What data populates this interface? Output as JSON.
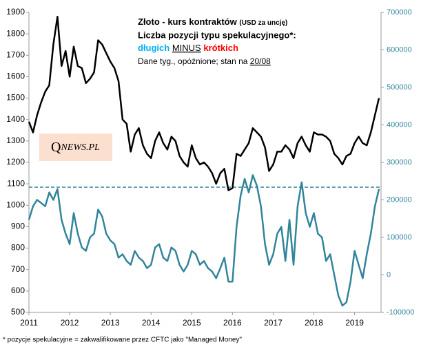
{
  "chart_data": {
    "type": "line",
    "title": "Złoto - kurs kontraktów",
    "title_unit": "(USD za uncję)",
    "subtitle": "Liczba pozycji typu spekulacyjnego*:",
    "legend_long": "długich",
    "legend_minus": "MINUS",
    "legend_short": "krótkich",
    "note": "Dane tyg., opóźnione; stan na",
    "note_date": "20/08",
    "footnote": "* pozycje spekulacyjne = zakwalifikowane przez CFTC jako \"Managed Money\"",
    "logo_q": "Q",
    "logo_rest": "NEWS.PL",
    "x": [
      2011,
      2011.1,
      2011.2,
      2011.3,
      2011.4,
      2011.5,
      2011.6,
      2011.7,
      2011.8,
      2011.9,
      2012,
      2012.1,
      2012.2,
      2012.3,
      2012.4,
      2012.5,
      2012.6,
      2012.7,
      2012.8,
      2012.9,
      2013,
      2013.1,
      2013.2,
      2013.3,
      2013.4,
      2013.5,
      2013.6,
      2013.7,
      2013.8,
      2013.9,
      2014,
      2014.1,
      2014.2,
      2014.3,
      2014.4,
      2014.5,
      2014.6,
      2014.7,
      2014.8,
      2014.9,
      2015,
      2015.1,
      2015.2,
      2015.3,
      2015.4,
      2015.5,
      2015.6,
      2015.7,
      2015.8,
      2015.9,
      2016,
      2016.1,
      2016.2,
      2016.3,
      2016.4,
      2016.5,
      2016.6,
      2016.7,
      2016.8,
      2016.9,
      2017,
      2017.1,
      2017.2,
      2017.3,
      2017.4,
      2017.5,
      2017.6,
      2017.7,
      2017.8,
      2017.9,
      2018,
      2018.1,
      2018.2,
      2018.3,
      2018.4,
      2018.5,
      2018.6,
      2018.7,
      2018.8,
      2018.9,
      2019,
      2019.1,
      2019.2,
      2019.3,
      2019.4,
      2019.5,
      2019.6
    ],
    "series": [
      {
        "color": "#000000",
        "values": [
          1390,
          1340,
          1420,
          1480,
          1530,
          1560,
          1750,
          1880,
          1650,
          1720,
          1600,
          1740,
          1650,
          1640,
          1570,
          1590,
          1620,
          1770,
          1750,
          1710,
          1670,
          1640,
          1580,
          1400,
          1380,
          1250,
          1330,
          1360,
          1280,
          1240,
          1220,
          1300,
          1340,
          1290,
          1260,
          1320,
          1300,
          1230,
          1200,
          1180,
          1280,
          1220,
          1190,
          1200,
          1180,
          1150,
          1100,
          1150,
          1170,
          1070,
          1080,
          1240,
          1230,
          1260,
          1290,
          1360,
          1340,
          1320,
          1270,
          1160,
          1190,
          1250,
          1250,
          1280,
          1260,
          1220,
          1290,
          1320,
          1280,
          1250,
          1340,
          1330,
          1330,
          1320,
          1300,
          1240,
          1220,
          1190,
          1230,
          1240,
          1290,
          1320,
          1290,
          1280,
          1340,
          1420,
          1500
        ]
      },
      {
        "color": "#31849b",
        "axis": "y2",
        "values": [
          147000,
          183000,
          200000,
          192000,
          183000,
          220000,
          200000,
          229000,
          147000,
          110000,
          82000,
          165000,
          110000,
          73000,
          64000,
          100000,
          110000,
          174000,
          156000,
          110000,
          92000,
          82000,
          46000,
          55000,
          37000,
          27000,
          64000,
          46000,
          37000,
          18000,
          27000,
          73000,
          82000,
          46000,
          37000,
          73000,
          64000,
          27000,
          9000,
          27000,
          64000,
          55000,
          27000,
          37000,
          18000,
          9000,
          -9000,
          18000,
          46000,
          -18000,
          -18000,
          128000,
          211000,
          256000,
          220000,
          266000,
          238000,
          183000,
          82000,
          27000,
          55000,
          110000,
          128000,
          37000,
          147000,
          27000,
          183000,
          247000,
          165000,
          128000,
          165000,
          110000,
          100000,
          37000,
          55000,
          0,
          -55000,
          -82000,
          -73000,
          -18000,
          64000,
          27000,
          -9000,
          55000,
          110000,
          183000,
          229000
        ]
      }
    ],
    "ref_line": {
      "value": 234000,
      "axis": "y2",
      "color": "#31849b"
    },
    "xlim": [
      2011,
      2019.65
    ],
    "xticks": [
      2011,
      2012,
      2013,
      2014,
      2015,
      2016,
      2017,
      2018,
      2019
    ],
    "ylim": [
      500,
      1900
    ],
    "yticks": [
      500,
      600,
      700,
      800,
      900,
      1000,
      1100,
      1200,
      1300,
      1400,
      1500,
      1600,
      1700,
      1800,
      1900
    ],
    "y2lim": [
      -100000,
      700000
    ],
    "y2ticks": [
      -100000,
      0,
      100000,
      200000,
      300000,
      400000,
      500000,
      600000,
      700000
    ],
    "y2_color": "#31849b",
    "long_color": "#00b0f0",
    "short_color": "#ff0000"
  }
}
